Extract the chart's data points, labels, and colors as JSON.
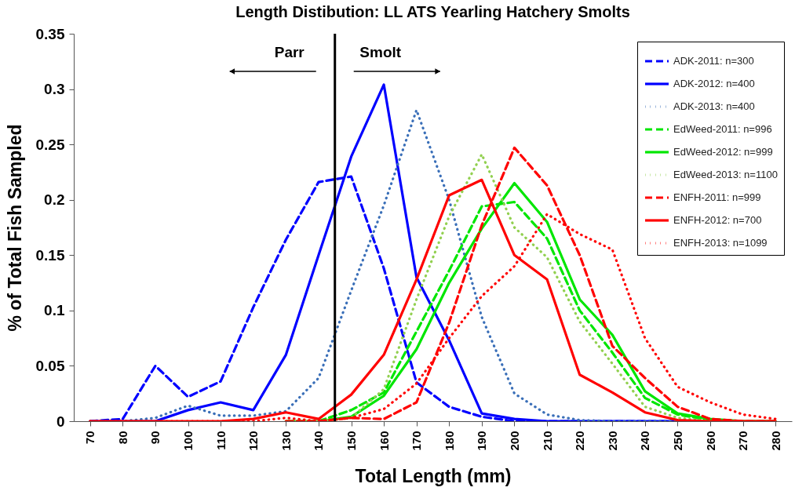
{
  "chart_data": {
    "type": "line",
    "title": "Length Distibution: LL ATS Yearling Hatchery Smolts",
    "xlabel": "Total Length (mm)",
    "ylabel": "% of Total Fish Sampled",
    "x": [
      70,
      80,
      90,
      100,
      110,
      120,
      130,
      140,
      150,
      160,
      170,
      180,
      190,
      200,
      210,
      220,
      230,
      240,
      250,
      260,
      270,
      280
    ],
    "xlim": [
      65,
      285
    ],
    "xticks": [
      70,
      80,
      90,
      100,
      110,
      120,
      130,
      140,
      150,
      160,
      170,
      180,
      190,
      200,
      210,
      220,
      230,
      240,
      250,
      260,
      270,
      280
    ],
    "ylim": [
      0,
      0.35
    ],
    "yticks": [
      0,
      0.05,
      0.1,
      0.15,
      0.2,
      0.25,
      0.3,
      0.35
    ],
    "grid": false,
    "legend": "top right",
    "ref_lines": [
      {
        "axis": "x",
        "value": 145,
        "color": "#000000"
      }
    ],
    "annotations": [
      "Parr",
      "Smolt"
    ],
    "series": [
      {
        "name": "ADK-2011: n=300",
        "color": "#0000ff",
        "line_style": "dashed",
        "values": [
          0,
          0.002,
          0.05,
          0.022,
          0.036,
          0.103,
          0.164,
          0.216,
          0.221,
          0.138,
          0.035,
          0.013,
          0.004,
          0,
          0,
          0,
          0,
          0,
          0,
          null,
          null,
          null
        ]
      },
      {
        "name": "ADK-2012: n=400",
        "color": "#0000ff",
        "line_style": "solid",
        "values": [
          0,
          0,
          0,
          0.01,
          0.017,
          0.01,
          0.06,
          0.15,
          0.239,
          0.304,
          0.13,
          0.073,
          0.007,
          0.002,
          0,
          0,
          0,
          0,
          0,
          null,
          null,
          null
        ]
      },
      {
        "name": "ADK-2013: n=400",
        "color": "#3a6fb8",
        "line_style": "dotted",
        "values": [
          0,
          0,
          0.003,
          0.014,
          0.005,
          0.005,
          0.009,
          0.039,
          0.118,
          0.195,
          0.281,
          0.2,
          0.094,
          0.025,
          0.006,
          0.001,
          0,
          0,
          0,
          null,
          null,
          null
        ]
      },
      {
        "name": "EdWeed-2011: n=996",
        "color": "#00e600",
        "line_style": "dashed",
        "values": [
          null,
          null,
          null,
          null,
          null,
          null,
          0,
          0,
          0.01,
          0.026,
          0.081,
          0.136,
          0.194,
          0.198,
          0.165,
          0.1,
          0.062,
          0.021,
          0.006,
          0.001,
          0,
          0
        ]
      },
      {
        "name": "EdWeed-2012: n=999",
        "color": "#00e600",
        "line_style": "solid",
        "values": [
          null,
          null,
          null,
          null,
          null,
          null,
          0,
          0,
          0.004,
          0.023,
          0.065,
          0.125,
          0.174,
          0.215,
          0.18,
          0.11,
          0.078,
          0.027,
          0.007,
          0.002,
          0,
          0
        ]
      },
      {
        "name": "EdWeed-2013: n=1100",
        "color": "#92d050",
        "line_style": "dotted",
        "values": [
          null,
          null,
          null,
          null,
          null,
          null,
          0,
          0,
          0.003,
          0.029,
          0.11,
          0.185,
          0.241,
          0.175,
          0.148,
          0.09,
          0.052,
          0.013,
          0.003,
          0,
          0,
          0
        ]
      },
      {
        "name": "ENFH-2011: n=999",
        "color": "#ff0000",
        "line_style": "dashed",
        "values": [
          null,
          null,
          null,
          null,
          null,
          null,
          0,
          0,
          0.003,
          0.002,
          0.017,
          0.089,
          0.177,
          0.247,
          0.213,
          0.15,
          0.068,
          0.039,
          0.013,
          0.002,
          0,
          0
        ]
      },
      {
        "name": "ENFH-2012: n=700",
        "color": "#ff0000",
        "line_style": "solid",
        "values": [
          0,
          0,
          0,
          0,
          0,
          0.002,
          0.008,
          0.002,
          0.024,
          0.06,
          0.128,
          0.204,
          0.218,
          0.15,
          0.128,
          0.042,
          0.026,
          0.008,
          0.001,
          0,
          0,
          0
        ]
      },
      {
        "name": "ENFH-2013: n=1099",
        "color": "#ff0000",
        "line_style": "dotted",
        "values": [
          0,
          0,
          0,
          0,
          0,
          0,
          0.003,
          0,
          0.003,
          0.011,
          0.034,
          0.075,
          0.113,
          0.14,
          0.187,
          0.169,
          0.155,
          0.075,
          0.031,
          0.017,
          0.006,
          0.002
        ]
      }
    ]
  }
}
